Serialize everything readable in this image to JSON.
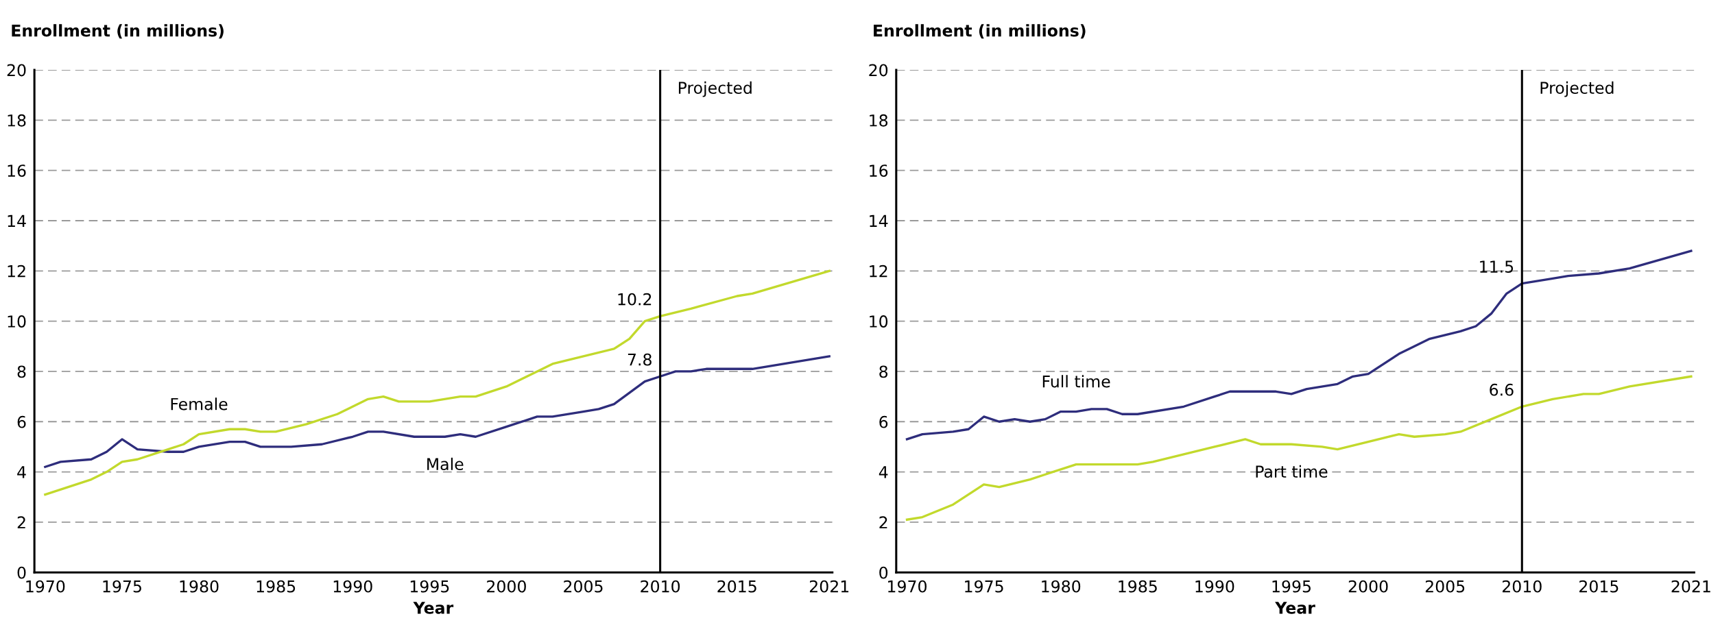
{
  "chart_data": [
    {
      "type": "line",
      "ylabel": "Enrollment (in millions)",
      "xlabel": "Year",
      "xlim": [
        1969.3,
        2021.2
      ],
      "xticks": [
        1970,
        1975,
        1980,
        1985,
        1990,
        1995,
        2000,
        2005,
        2010,
        2015,
        2021
      ],
      "ylim": [
        0,
        20
      ],
      "yticks": [
        0,
        2,
        4,
        6,
        8,
        10,
        12,
        14,
        16,
        18,
        20
      ],
      "grid": "y",
      "legend": false,
      "ref_lines": [
        {
          "axis": "x",
          "value": 2010,
          "label": "Projected",
          "color": "#000000",
          "line_style": "solid"
        }
      ],
      "series": [
        {
          "name": "Male",
          "color": "#2e2d7c",
          "x": [
            1970,
            1971,
            1973,
            1974,
            1975,
            1976,
            1978,
            1979,
            1980,
            1982,
            1983,
            1984,
            1986,
            1988,
            1990,
            1991,
            1992,
            1994,
            1996,
            1997,
            1998,
            2000,
            2002,
            2003,
            2005,
            2006,
            2007,
            2009,
            2010,
            2011,
            2012,
            2013,
            2016,
            2021
          ],
          "values": [
            4.2,
            4.4,
            4.5,
            4.8,
            5.3,
            4.9,
            4.8,
            4.8,
            5.0,
            5.2,
            5.2,
            5.0,
            5.0,
            5.1,
            5.4,
            5.6,
            5.6,
            5.4,
            5.4,
            5.5,
            5.4,
            5.8,
            6.2,
            6.2,
            6.4,
            6.5,
            6.7,
            7.6,
            7.8,
            8.0,
            8.0,
            8.1,
            8.1,
            8.6
          ],
          "value_labels": [
            null,
            null,
            null,
            null,
            null,
            null,
            null,
            null,
            null,
            null,
            null,
            null,
            null,
            null,
            null,
            null,
            null,
            null,
            null,
            null,
            null,
            null,
            null,
            null,
            null,
            null,
            null,
            null,
            "7.8",
            null,
            null,
            null,
            null,
            null
          ]
        },
        {
          "name": "Female",
          "color": "#c2d92c",
          "x": [
            1970,
            1973,
            1974,
            1975,
            1976,
            1978,
            1979,
            1980,
            1982,
            1983,
            1984,
            1985,
            1987,
            1989,
            1990,
            1991,
            1992,
            1993,
            1995,
            1997,
            1998,
            2000,
            2002,
            2003,
            2005,
            2007,
            2008,
            2009,
            2010,
            2012,
            2015,
            2016,
            2021
          ],
          "values": [
            3.1,
            3.7,
            4.0,
            4.4,
            4.5,
            4.9,
            5.1,
            5.5,
            5.7,
            5.7,
            5.6,
            5.6,
            5.9,
            6.3,
            6.6,
            6.9,
            7.0,
            6.8,
            6.8,
            7.0,
            7.0,
            7.4,
            8.0,
            8.3,
            8.6,
            8.9,
            9.3,
            10.0,
            10.2,
            10.5,
            11.0,
            11.1,
            12.0
          ],
          "value_labels": [
            null,
            null,
            null,
            null,
            null,
            null,
            null,
            null,
            null,
            null,
            null,
            null,
            null,
            null,
            null,
            null,
            null,
            null,
            null,
            null,
            null,
            null,
            null,
            null,
            null,
            null,
            null,
            null,
            "10.2",
            null,
            null,
            null,
            null
          ]
        }
      ]
    },
    {
      "type": "line",
      "ylabel": "Enrollment (in millions)",
      "xlabel": "Year",
      "xlim": [
        1969.3,
        2021.2
      ],
      "xticks": [
        1970,
        1975,
        1980,
        1985,
        1990,
        1995,
        2000,
        2005,
        2010,
        2015,
        2021
      ],
      "ylim": [
        0,
        20
      ],
      "yticks": [
        0,
        2,
        4,
        6,
        8,
        10,
        12,
        14,
        16,
        18,
        20
      ],
      "grid": "y",
      "legend": false,
      "ref_lines": [
        {
          "axis": "x",
          "value": 2010,
          "label": "Projected",
          "color": "#000000",
          "line_style": "solid"
        }
      ],
      "series": [
        {
          "name": "Full time",
          "color": "#2e2d7c",
          "x": [
            1970,
            1971,
            1973,
            1974,
            1975,
            1976,
            1977,
            1978,
            1979,
            1980,
            1981,
            1982,
            1983,
            1984,
            1985,
            1988,
            1990,
            1991,
            1994,
            1995,
            1996,
            1998,
            1999,
            2000,
            2002,
            2004,
            2006,
            2007,
            2008,
            2009,
            2010,
            2012,
            2013,
            2015,
            2017,
            2021
          ],
          "values": [
            5.3,
            5.5,
            5.6,
            5.7,
            6.2,
            6.0,
            6.1,
            6.0,
            6.1,
            6.4,
            6.4,
            6.5,
            6.5,
            6.3,
            6.3,
            6.6,
            7.0,
            7.2,
            7.2,
            7.1,
            7.3,
            7.5,
            7.8,
            7.9,
            8.7,
            9.3,
            9.6,
            9.8,
            10.3,
            11.1,
            11.5,
            11.7,
            11.8,
            11.9,
            12.1,
            12.8
          ],
          "value_labels": [
            null,
            null,
            null,
            null,
            null,
            null,
            null,
            null,
            null,
            null,
            null,
            null,
            null,
            null,
            null,
            null,
            null,
            null,
            null,
            null,
            null,
            null,
            null,
            null,
            null,
            null,
            null,
            null,
            null,
            null,
            "11.5",
            null,
            null,
            null,
            null,
            null
          ]
        },
        {
          "name": "Part time",
          "color": "#c2d92c",
          "x": [
            1970,
            1971,
            1973,
            1975,
            1976,
            1978,
            1979,
            1981,
            1985,
            1986,
            1988,
            1990,
            1992,
            1993,
            1995,
            1997,
            1998,
            2000,
            2002,
            2003,
            2005,
            2006,
            2008,
            2010,
            2012,
            2014,
            2015,
            2017,
            2021
          ],
          "values": [
            2.1,
            2.2,
            2.7,
            3.5,
            3.4,
            3.7,
            3.9,
            4.3,
            4.3,
            4.4,
            4.7,
            5.0,
            5.3,
            5.1,
            5.1,
            5.0,
            4.9,
            5.2,
            5.5,
            5.4,
            5.5,
            5.6,
            6.1,
            6.6,
            6.9,
            7.1,
            7.1,
            7.4,
            7.8
          ],
          "value_labels": [
            null,
            null,
            null,
            null,
            null,
            null,
            null,
            null,
            null,
            null,
            null,
            null,
            null,
            null,
            null,
            null,
            null,
            null,
            null,
            null,
            null,
            null,
            null,
            "6.6",
            null,
            null,
            null,
            null,
            null
          ]
        }
      ]
    }
  ]
}
